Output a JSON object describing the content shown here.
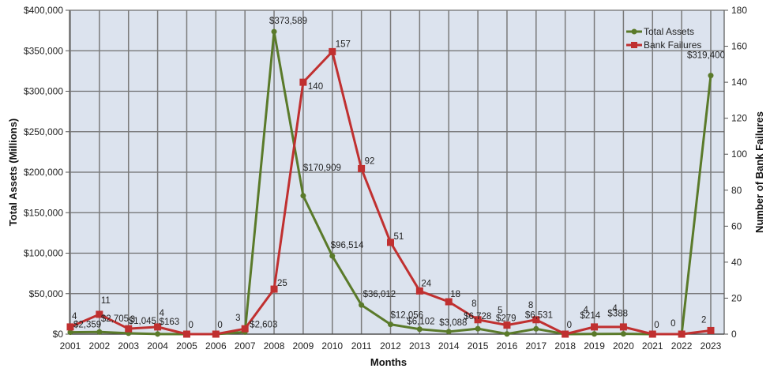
{
  "chart_data": {
    "type": "line",
    "title": "",
    "xlabel": "Months",
    "ylabel": "Total Assets (Millions)",
    "y2label": "Number of Bank Failures",
    "categories": [
      "2001",
      "2002",
      "2003",
      "2004",
      "2005",
      "2006",
      "2007",
      "2008",
      "2009",
      "2010",
      "2011",
      "2012",
      "2013",
      "2014",
      "2015",
      "2016",
      "2017",
      "2018",
      "2019",
      "2020",
      "2021",
      "2022",
      "2023"
    ],
    "ylim": [
      0,
      400000
    ],
    "y2lim": [
      0,
      180
    ],
    "yticks": [
      "$0",
      "$50,000",
      "$100,000",
      "$150,000",
      "$200,000",
      "$250,000",
      "$300,000",
      "$350,000",
      "$400,000"
    ],
    "y2ticks": [
      "0",
      "20",
      "40",
      "60",
      "80",
      "100",
      "120",
      "140",
      "160",
      "180"
    ],
    "grid": true,
    "legend_position": "top-right",
    "series": [
      {
        "name": "Total Assets",
        "axis": "left",
        "color": "#5a7a2a",
        "marker": "circle",
        "values": [
          2359,
          2705,
          1045,
          163,
          0,
          0,
          2603,
          373589,
          170909,
          96514,
          36012,
          12056,
          6102,
          3088,
          6728,
          279,
          6531,
          0,
          214,
          388,
          0,
          0,
          319400
        ],
        "labels": [
          "$2,359",
          "$2,705",
          "$1,045",
          "$163",
          "",
          "",
          "$2,603",
          "$373,589",
          "$170,909",
          "$96,514",
          "$36,012",
          "$12,056",
          "$6,102",
          "$3,088",
          "$6,728",
          "$279",
          "$6,531",
          "",
          "$214",
          "$388",
          "",
          "",
          "$319,400"
        ]
      },
      {
        "name": "Bank Failures",
        "axis": "right",
        "color": "#c03030",
        "marker": "square",
        "values": [
          4,
          11,
          3,
          4,
          0,
          0,
          3,
          25,
          140,
          157,
          92,
          51,
          24,
          18,
          8,
          5,
          8,
          0,
          4,
          4,
          0,
          0,
          2
        ],
        "labels": [
          "4",
          "11",
          "3",
          "4",
          "0",
          "0",
          "3",
          "25",
          "140",
          "157",
          "92",
          "51",
          "24",
          "18",
          "8",
          "5",
          "8",
          "0",
          "4",
          "4",
          "0",
          "0",
          "2"
        ]
      }
    ]
  }
}
